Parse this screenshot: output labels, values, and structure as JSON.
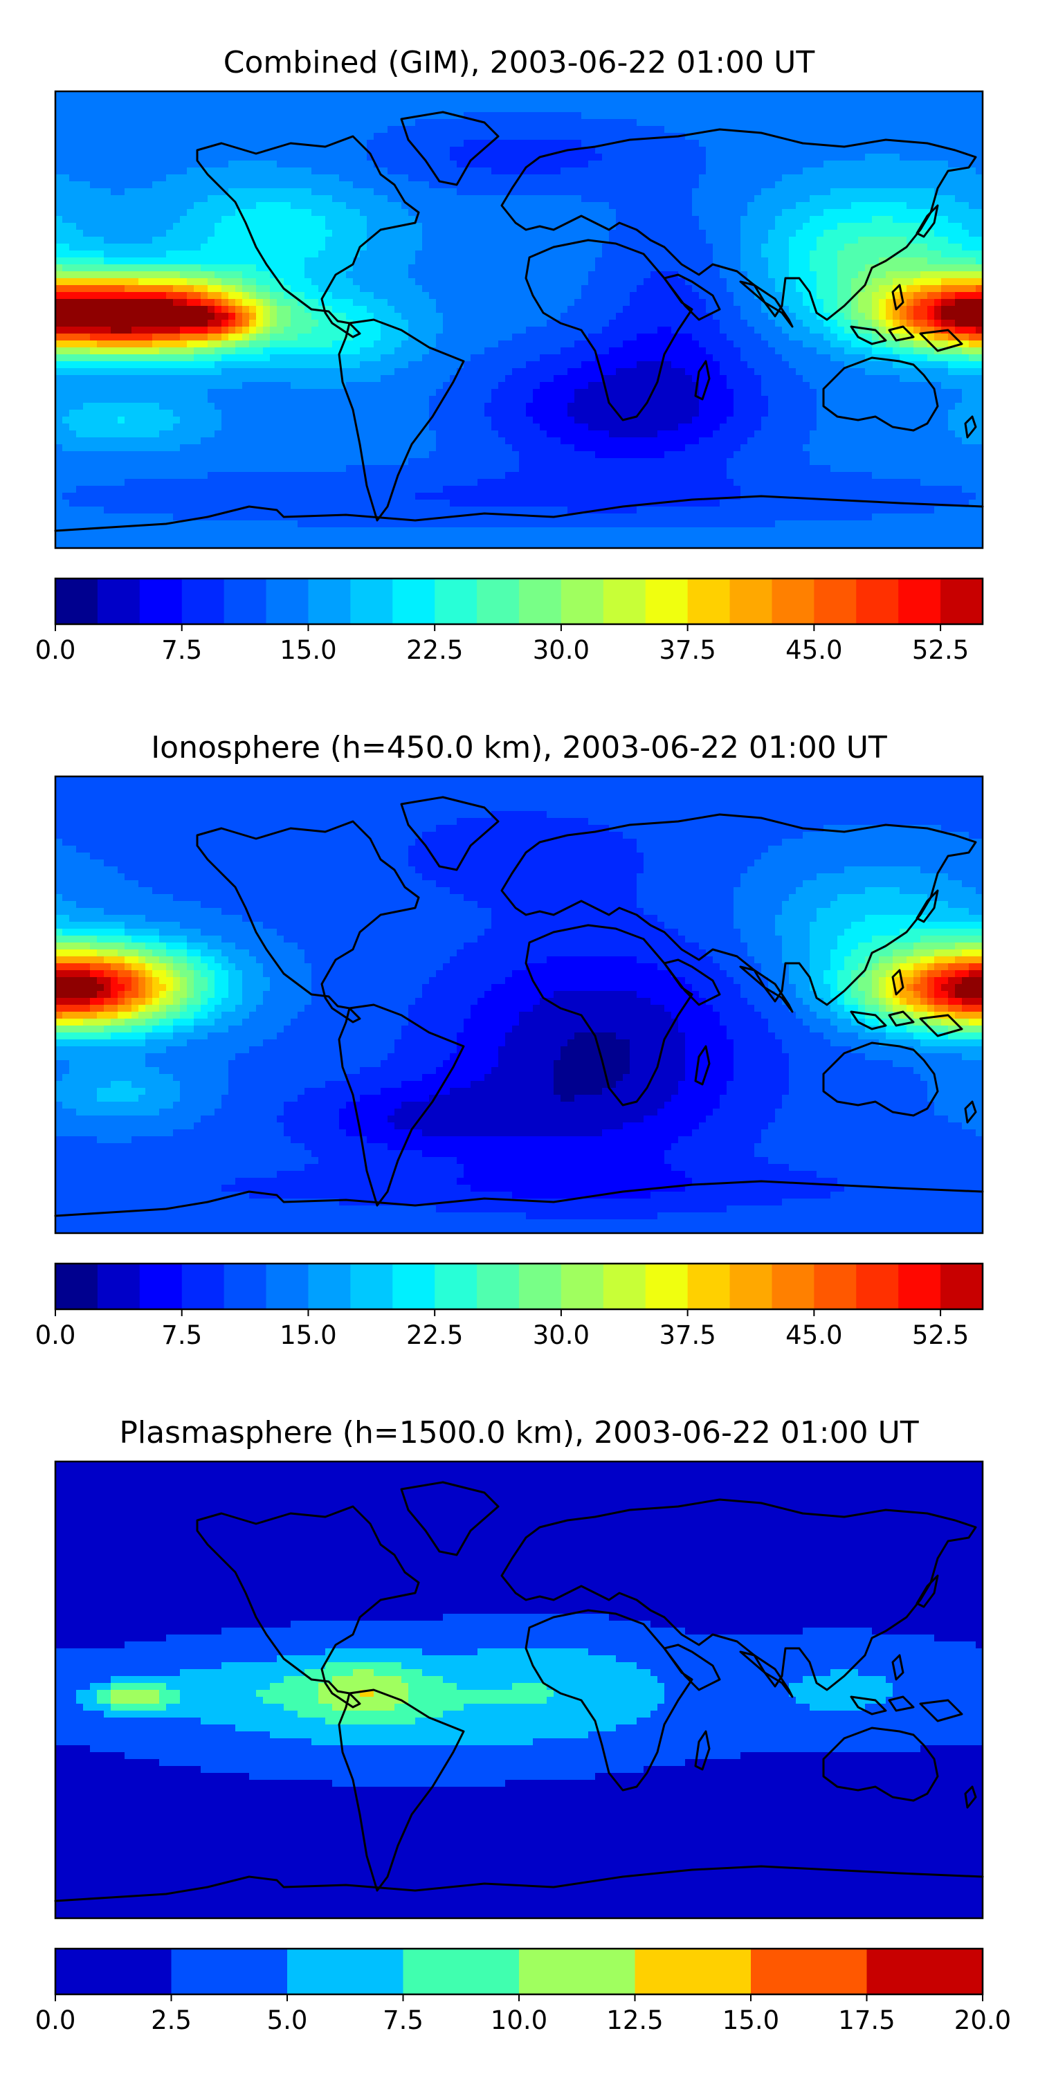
{
  "chart_data": [
    {
      "type": "heatmap",
      "title": "Combined (GIM), 2003-06-22 01:00 UT",
      "colorbar": {
        "levels": [
          0.0,
          2.5,
          5.0,
          7.5,
          10.0,
          12.5,
          15.0,
          17.5,
          20.0,
          22.5,
          25.0,
          27.5,
          30.0,
          32.5,
          35.0,
          37.5,
          40.0,
          42.5,
          45.0,
          47.5,
          50.0,
          52.5,
          55.0
        ],
        "tick_labels": [
          "0.0",
          "7.5",
          "15.0",
          "22.5",
          "30.0",
          "37.5",
          "45.0",
          "52.5"
        ],
        "tick_values": [
          0.0,
          7.5,
          15.0,
          22.5,
          30.0,
          37.5,
          45.0,
          52.5
        ],
        "colors": [
          "#00008f",
          "#0000c8",
          "#0000ff",
          "#0028ff",
          "#0050ff",
          "#0078ff",
          "#00a0ff",
          "#00c8ff",
          "#00f0ff",
          "#28ffd7",
          "#50ffaf",
          "#78ff87",
          "#a0ff5f",
          "#c8ff37",
          "#f0ff0f",
          "#ffd000",
          "#ffa800",
          "#ff8000",
          "#ff5800",
          "#ff3000",
          "#ff0800",
          "#c80000",
          "#8f0000"
        ]
      },
      "background": 14,
      "blobs": [
        {
          "lon": -140,
          "lat": 2,
          "rlon": 40,
          "rlat": 15,
          "amp": 42
        },
        {
          "lon": -115,
          "lat": 0,
          "rlon": 16,
          "rlat": 7,
          "amp": 10
        },
        {
          "lon": 170,
          "lat": 2,
          "rlon": 35,
          "rlat": 14,
          "amp": 32
        },
        {
          "lon": 140,
          "lat": 25,
          "rlon": 45,
          "rlat": 25,
          "amp": 12
        },
        {
          "lon": -95,
          "lat": 35,
          "rlon": 40,
          "rlat": 20,
          "amp": 8
        },
        {
          "lon": -70,
          "lat": -5,
          "rlon": 30,
          "rlat": 15,
          "amp": 8
        },
        {
          "lon": -155,
          "lat": -40,
          "rlon": 30,
          "rlat": 10,
          "amp": 6
        },
        {
          "lon": 40,
          "lat": -35,
          "rlon": 55,
          "rlat": 25,
          "amp": -10
        },
        {
          "lon": 60,
          "lat": 5,
          "rlon": 30,
          "rlat": 40,
          "amp": -5
        },
        {
          "lon": 0,
          "lat": 65,
          "rlon": 60,
          "rlat": 15,
          "amp": -5
        },
        {
          "lon": 0,
          "lat": -70,
          "rlon": 180,
          "rlat": 12,
          "amp": -4
        }
      ]
    },
    {
      "type": "heatmap",
      "title": "Ionosphere  (h=450.0 km), 2003-06-22 01:00 UT",
      "colorbar": {
        "levels": [
          0.0,
          2.5,
          5.0,
          7.5,
          10.0,
          12.5,
          15.0,
          17.5,
          20.0,
          22.5,
          25.0,
          27.5,
          30.0,
          32.5,
          35.0,
          37.5,
          40.0,
          42.5,
          45.0,
          47.5,
          50.0,
          52.5,
          55.0
        ],
        "tick_labels": [
          "0.0",
          "7.5",
          "15.0",
          "22.5",
          "30.0",
          "37.5",
          "45.0",
          "52.5"
        ],
        "tick_values": [
          0.0,
          7.5,
          15.0,
          22.5,
          30.0,
          37.5,
          45.0,
          52.5
        ],
        "colors": [
          "#00008f",
          "#0000c8",
          "#0000ff",
          "#0028ff",
          "#0050ff",
          "#0078ff",
          "#00a0ff",
          "#00c8ff",
          "#00f0ff",
          "#28ffd7",
          "#50ffaf",
          "#78ff87",
          "#a0ff5f",
          "#c8ff37",
          "#f0ff0f",
          "#ffd000",
          "#ffa800",
          "#ff8000",
          "#ff5800",
          "#ff3000",
          "#ff0800",
          "#c80000",
          "#8f0000"
        ]
      },
      "background": 12,
      "blobs": [
        {
          "lon": -160,
          "lat": 8,
          "rlon": 42,
          "rlat": 17,
          "amp": 27
        },
        {
          "lon": 170,
          "lat": 5,
          "rlon": 40,
          "rlat": 15,
          "amp": 26
        },
        {
          "lon": 140,
          "lat": 30,
          "rlon": 45,
          "rlat": 25,
          "amp": 8
        },
        {
          "lon": -155,
          "lat": -35,
          "rlon": 30,
          "rlat": 12,
          "amp": 6
        },
        {
          "lon": 30,
          "lat": -20,
          "rlon": 60,
          "rlat": 45,
          "amp": -10
        },
        {
          "lon": 0,
          "lat": 60,
          "rlon": 50,
          "rlat": 18,
          "amp": -4
        },
        {
          "lon": -40,
          "lat": -45,
          "rlon": 50,
          "rlat": 15,
          "amp": -6
        },
        {
          "lon": 0,
          "lat": -72,
          "rlon": 180,
          "rlat": 10,
          "amp": -3
        }
      ]
    },
    {
      "type": "heatmap",
      "title": "Plasmasphere (h=1500.0 km), 2003-06-22 01:00 UT",
      "colorbar": {
        "levels": [
          0.0,
          2.5,
          5.0,
          7.5,
          10.0,
          12.5,
          15.0,
          17.5,
          20.0
        ],
        "tick_labels": [
          "0.0",
          "2.5",
          "5.0",
          "7.5",
          "10.0",
          "12.5",
          "15.0",
          "17.5",
          "20.0"
        ],
        "tick_values": [
          0.0,
          2.5,
          5.0,
          7.5,
          10.0,
          12.5,
          15.0,
          17.5,
          20.0
        ],
        "colors": [
          "#0000c8",
          "#0050ff",
          "#00c0ff",
          "#40ffaf",
          "#a0ff5f",
          "#ffd000",
          "#ff5800",
          "#c80000"
        ]
      },
      "background": 1.5,
      "blobs": [
        {
          "lon": -40,
          "lat": -5,
          "rlon": 110,
          "rlat": 25,
          "amp": 5.5
        },
        {
          "lon": -60,
          "lat": 0,
          "rlon": 22,
          "rlat": 12,
          "amp": 5.5
        },
        {
          "lon": -150,
          "lat": -3,
          "rlon": 16,
          "rlat": 6,
          "amp": 8
        },
        {
          "lon": -110,
          "lat": 0,
          "rlon": 40,
          "rlat": 12,
          "amp": 2
        },
        {
          "lon": 130,
          "lat": 0,
          "rlon": 45,
          "rlat": 20,
          "amp": 3.5
        },
        {
          "lon": 20,
          "lat": 5,
          "rlon": 40,
          "rlat": 20,
          "amp": 2
        }
      ]
    }
  ]
}
